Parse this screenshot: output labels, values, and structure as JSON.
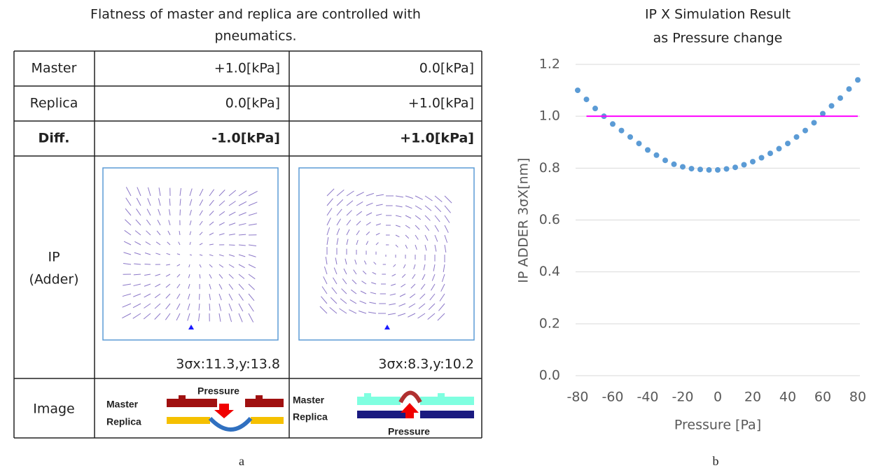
{
  "table": {
    "title_lines": [
      "Flatness of master and replica are controlled with",
      "pneumatics."
    ],
    "rows": [
      [
        "Master",
        "+1.0[kPa]",
        "0.0[kPa]"
      ],
      [
        "Replica",
        "0.0[kPa]",
        "+1.0[kPa]"
      ],
      [
        "Diff.",
        "-1.0[kPa]",
        "+1.0[kPa]"
      ]
    ],
    "ip_label": [
      "IP",
      "(Adder)"
    ],
    "ip_results": [
      "3σx:11.3,y:13.8",
      "3σx:8.3,y:10.2"
    ],
    "image_label": "Image",
    "diagram_labels": {
      "master": "Master",
      "replica": "Replica",
      "pressure": "Pressure"
    },
    "caption": "a"
  },
  "chart_data": {
    "type": "scatter",
    "title": "IP X Simulation Result",
    "subtitle": "as Pressure  change",
    "x_label": "Pressure [Pa]",
    "y_label": "IP ADDER 3σX[nm]",
    "caption": "b",
    "xlim": [
      -80,
      80
    ],
    "ylim": [
      0,
      1.2
    ],
    "xticks": [
      -80,
      -60,
      -40,
      -20,
      0,
      20,
      40,
      60,
      80
    ],
    "yticks": [
      {
        "value": 0,
        "label": "0.0"
      },
      0.2,
      0.4,
      0.6,
      0.8,
      {
        "value": 1,
        "label": "1.0"
      },
      1.2
    ],
    "grid": true,
    "series": [
      {
        "type": "scatter",
        "color": "#5b9bd5",
        "x": [
          -80,
          -75,
          -70,
          -65,
          -60,
          -55,
          -50,
          -45,
          -40,
          -35,
          -30,
          -25,
          -20,
          -15,
          -10,
          -5,
          0,
          5,
          10,
          15,
          20,
          25,
          30,
          35,
          40,
          45,
          50,
          55,
          60,
          65,
          70,
          75,
          80
        ],
        "values": [
          1.1,
          1.065,
          1.03,
          1.0,
          0.97,
          0.945,
          0.92,
          0.895,
          0.87,
          0.85,
          0.83,
          0.815,
          0.805,
          0.798,
          0.795,
          0.793,
          0.793,
          0.797,
          0.803,
          0.813,
          0.825,
          0.84,
          0.857,
          0.875,
          0.895,
          0.92,
          0.945,
          0.975,
          1.01,
          1.04,
          1.07,
          1.105,
          1.14
        ]
      },
      {
        "type": "line",
        "color": "#ff00ff",
        "x": [
          -75,
          80
        ],
        "values": [
          1.0,
          1.0
        ]
      }
    ]
  }
}
